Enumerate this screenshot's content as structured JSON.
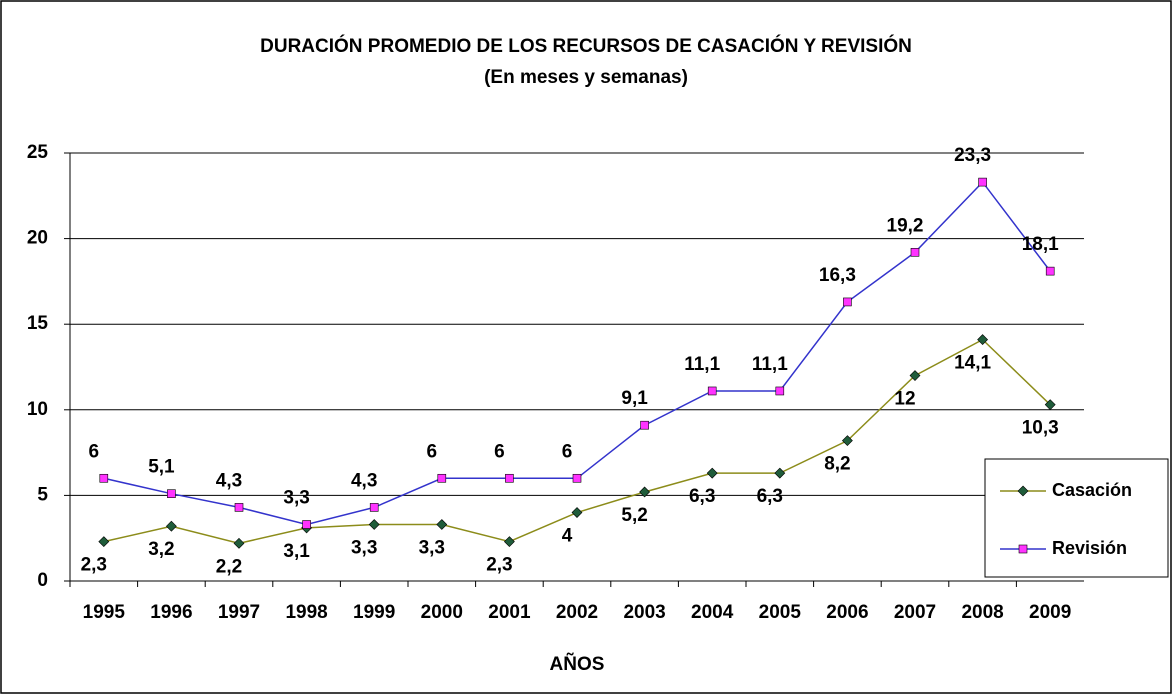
{
  "chart_data": {
    "type": "line",
    "title": "DURACIÓN PROMEDIO DE LOS RECURSOS DE CASACIÓN Y REVISIÓN",
    "subtitle": "(En meses y semanas)",
    "x_label": "AÑOS",
    "categories": [
      "1995",
      "1996",
      "1997",
      "1998",
      "1999",
      "2000",
      "2001",
      "2002",
      "2003",
      "2004",
      "2005",
      "2006",
      "2007",
      "2008",
      "2009"
    ],
    "series": [
      {
        "name": "Casación",
        "color": "#8c8c1a",
        "marker_color": "#1f5c3a",
        "marker": "diamond",
        "values": [
          2.3,
          3.2,
          2.2,
          3.1,
          3.3,
          3.3,
          2.3,
          4,
          5.2,
          6.3,
          6.3,
          8.2,
          12,
          14.1,
          10.3
        ],
        "value_labels": [
          "2,3",
          "3,2",
          "2,2",
          "3,1",
          "3,3",
          "3,3",
          "2,3",
          "4",
          "5,2",
          "6,3",
          "6,3",
          "8,2",
          "12",
          "14,1",
          "10,3"
        ]
      },
      {
        "name": "Revisión",
        "color": "#3333cc",
        "marker_color": "#ff33ff",
        "marker": "square",
        "values": [
          6,
          5.1,
          4.3,
          3.3,
          4.3,
          6,
          6,
          6,
          9.1,
          11.1,
          11.1,
          16.3,
          19.2,
          23.3,
          18.1
        ],
        "value_labels": [
          "6",
          "5,1",
          "4,3",
          "3,3",
          "4,3",
          "6",
          "6",
          "6",
          "9,1",
          "11,1",
          "11,1",
          "16,3",
          "19,2",
          "23,3",
          "18,1"
        ]
      }
    ],
    "ylim": [
      0,
      25
    ],
    "yticks": [
      0,
      5,
      10,
      15,
      20,
      25
    ],
    "grid": true,
    "legend": "right"
  }
}
